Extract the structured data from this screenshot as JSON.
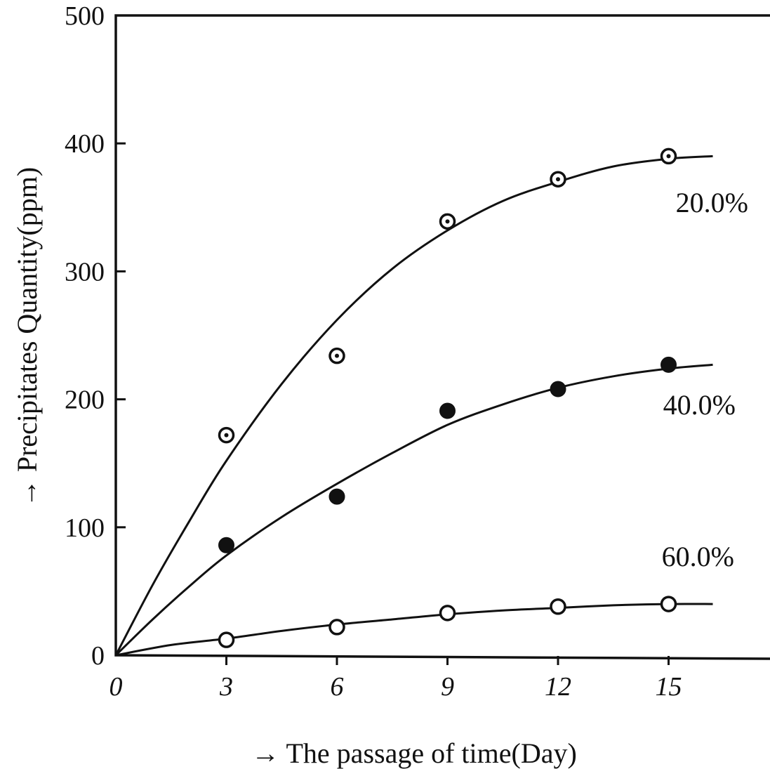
{
  "chart_data": {
    "type": "line",
    "title": "",
    "xlabel": "→ The passage of time(Day)",
    "ylabel": "→ Precipitates Quantity(ppm)",
    "xlim": [
      0,
      18
    ],
    "ylim": [
      0,
      500
    ],
    "x_ticks": [
      0,
      3,
      6,
      9,
      12,
      15
    ],
    "x_tick_labels": [
      "0",
      "3",
      "6",
      "9",
      "12",
      "15"
    ],
    "y_ticks": [
      0,
      100,
      200,
      300,
      400,
      500
    ],
    "y_tick_labels": [
      "0",
      "100",
      "200",
      "300",
      "400",
      "500"
    ],
    "grid": false,
    "legend": "none",
    "series": [
      {
        "name": "20.0%",
        "marker": "dotted-circle",
        "points": [
          [
            3,
            172
          ],
          [
            6,
            234
          ],
          [
            9,
            339
          ],
          [
            12,
            372
          ],
          [
            15,
            390
          ]
        ],
        "curve": [
          [
            0,
            0
          ],
          [
            1,
            55
          ],
          [
            2,
            105
          ],
          [
            3,
            152
          ],
          [
            4.5,
            212
          ],
          [
            6,
            262
          ],
          [
            7.5,
            302
          ],
          [
            9,
            332
          ],
          [
            10.5,
            355
          ],
          [
            12,
            370
          ],
          [
            13.5,
            382
          ],
          [
            15,
            388
          ],
          [
            16.2,
            390
          ]
        ]
      },
      {
        "name": "40.0%",
        "marker": "filled-circle",
        "points": [
          [
            3,
            86
          ],
          [
            6,
            124
          ],
          [
            9,
            191
          ],
          [
            12,
            208
          ],
          [
            15,
            227
          ]
        ],
        "curve": [
          [
            0,
            0
          ],
          [
            1,
            28
          ],
          [
            2,
            54
          ],
          [
            3,
            78
          ],
          [
            4.5,
            108
          ],
          [
            6,
            134
          ],
          [
            7.5,
            158
          ],
          [
            9,
            180
          ],
          [
            10.5,
            196
          ],
          [
            12,
            209
          ],
          [
            13.5,
            218
          ],
          [
            15,
            224
          ],
          [
            16.2,
            227
          ]
        ]
      },
      {
        "name": "60.0%",
        "marker": "open-circle",
        "points": [
          [
            3,
            12
          ],
          [
            6,
            22
          ],
          [
            9,
            33
          ],
          [
            12,
            38
          ],
          [
            15,
            40
          ]
        ],
        "curve": [
          [
            0,
            0
          ],
          [
            1.5,
            8
          ],
          [
            3,
            13
          ],
          [
            4.5,
            19
          ],
          [
            6,
            24
          ],
          [
            7.5,
            28
          ],
          [
            9,
            32
          ],
          [
            10.5,
            35
          ],
          [
            12,
            37
          ],
          [
            13.5,
            39
          ],
          [
            15,
            40
          ],
          [
            16.2,
            40
          ]
        ]
      }
    ]
  }
}
